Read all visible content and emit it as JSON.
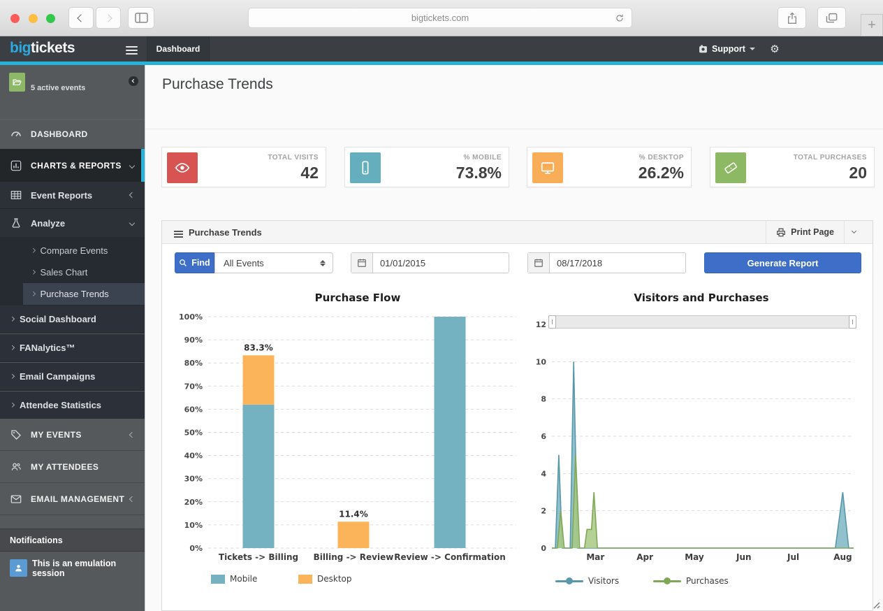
{
  "browser": {
    "url": "bigtickets.com"
  },
  "app_header": {
    "logo_primary": "big",
    "logo_secondary": "tickets",
    "dashboard_item": "Dashboard",
    "support_item": "Support"
  },
  "sidebar": {
    "events_badge": "5 active events",
    "dashboard": "DASHBOARD",
    "charts_reports": "CHARTS & REPORTS",
    "event_reports": "Event Reports",
    "analyze": "Analyze",
    "analyze_children": [
      {
        "label": "Compare Events"
      },
      {
        "label": "Sales Chart"
      },
      {
        "label": "Purchase Trends"
      }
    ],
    "links": [
      {
        "label": "Social Dashboard"
      },
      {
        "label": "FANalytics™"
      },
      {
        "label": "Email Campaigns"
      },
      {
        "label": "Attendee Statistics"
      }
    ],
    "my_events": "MY EVENTS",
    "my_attendees": "MY ATTENDEES",
    "email_management": "EMAIL MANAGEMENT",
    "notifications_header": "Notifications",
    "notification_text": "This is an emulation session",
    "notification_icon_color": "#5b9bd3"
  },
  "page": {
    "title": "Purchase Trends"
  },
  "stats": [
    {
      "label": "TOTAL VISITS",
      "value": "42",
      "icon": "eye-icon",
      "color": "#d75452"
    },
    {
      "label": "% MOBILE",
      "value": "73.8%",
      "icon": "mobile-icon",
      "color": "#64aebd"
    },
    {
      "label": "% DESKTOP",
      "value": "26.2%",
      "icon": "desktop-icon",
      "color": "#f9ad58"
    },
    {
      "label": "TOTAL PURCHASES",
      "value": "20",
      "icon": "ticket-icon",
      "color": "#8db964"
    }
  ],
  "panel": {
    "title": "Purchase Trends",
    "print_label": "Print Page",
    "find_label": "Find",
    "event_filter_value": "All Events",
    "date_from": "01/01/2015",
    "date_to": "08/17/2018",
    "generate_label": "Generate Report",
    "accent_color": "#3d6ec8"
  },
  "chart_data": [
    {
      "id": "purchase_flow",
      "type": "bar",
      "stacked": true,
      "title": "Purchase Flow",
      "categories": [
        "Tickets -> Billing",
        "Billing -> Review",
        "Review -> Confirmation"
      ],
      "series": [
        {
          "name": "Mobile",
          "color": "#74b2c2",
          "values": [
            62,
            0,
            100
          ]
        },
        {
          "name": "Desktop",
          "color": "#fcb45b",
          "values": [
            21.3,
            11.4,
            0
          ]
        }
      ],
      "total_labels": [
        "83.3%",
        "11.4%",
        ""
      ],
      "ylim": [
        0,
        100
      ],
      "ytick_step": 10,
      "ytick_suffix": "%",
      "grid": "dashed",
      "legend_position": "bottom"
    },
    {
      "id": "visitors_purchases",
      "type": "area",
      "title": "Visitors and Purchases",
      "x_unit": "months since Feb 1 2018",
      "xlim": [
        0.12,
        6.22
      ],
      "ylim": [
        0,
        12
      ],
      "ytick_step": 2,
      "x_ticks": [
        {
          "pos": 1,
          "label": "Mar"
        },
        {
          "pos": 2,
          "label": "Apr"
        },
        {
          "pos": 3,
          "label": "May"
        },
        {
          "pos": 4,
          "label": "Jun"
        },
        {
          "pos": 5,
          "label": "Jul"
        },
        {
          "pos": 6,
          "label": "Aug"
        }
      ],
      "series": [
        {
          "name": "Visitors",
          "color": "#5898aa",
          "fill": "#7db6c4",
          "points": [
            [
              0.12,
              0
            ],
            [
              0.19,
              0
            ],
            [
              0.26,
              5
            ],
            [
              0.33,
              0
            ],
            [
              0.49,
              0
            ],
            [
              0.56,
              10
            ],
            [
              0.64,
              0
            ],
            [
              5.85,
              0
            ],
            [
              6.0,
              3
            ],
            [
              6.12,
              0
            ],
            [
              6.22,
              0
            ]
          ]
        },
        {
          "name": "Purchases",
          "color": "#7fa757",
          "fill": "#a8c983",
          "points": [
            [
              0.12,
              0
            ],
            [
              0.23,
              0
            ],
            [
              0.3,
              2
            ],
            [
              0.37,
              0
            ],
            [
              0.53,
              0
            ],
            [
              0.6,
              5
            ],
            [
              0.68,
              0
            ],
            [
              0.78,
              0
            ],
            [
              0.83,
              1
            ],
            [
              0.92,
              1
            ],
            [
              0.97,
              3
            ],
            [
              1.04,
              0
            ],
            [
              6.22,
              0
            ]
          ]
        }
      ],
      "grid": "dashed",
      "range_slider": true,
      "legend_position": "bottom"
    }
  ]
}
